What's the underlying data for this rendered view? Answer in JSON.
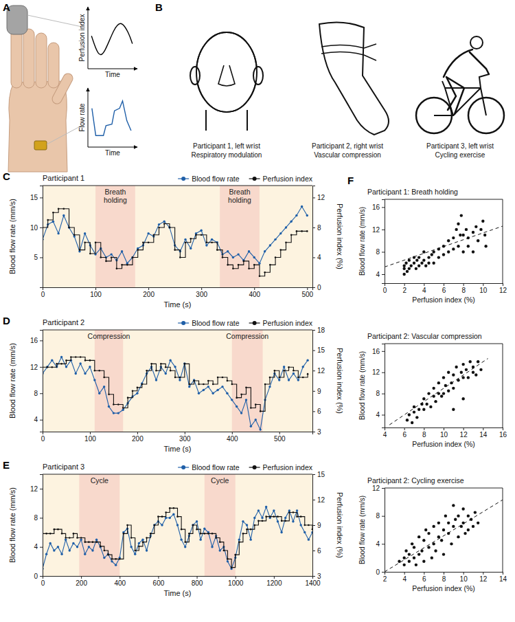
{
  "panel_a": {
    "label": "A",
    "plots": [
      {
        "ylabel": "Perfusion index",
        "xlabel": "Time"
      },
      {
        "ylabel": "Flow rate",
        "xlabel": "Time"
      }
    ]
  },
  "panel_b": {
    "label": "B",
    "items": [
      {
        "lines": [
          "Participant 1, left wrist",
          "Respiratory modulation"
        ]
      },
      {
        "lines": [
          "Participant 2, right wrist",
          "Vascular compression"
        ]
      },
      {
        "lines": [
          "Participant 3, left wrist",
          "Cycling exercise"
        ]
      }
    ]
  },
  "chart_data": [
    {
      "type": "line",
      "panel_label": "C",
      "title": "Participant 1",
      "legend": "top",
      "xlabel": "Time (s)",
      "ylabel": "Blood flow rate (mm/s)",
      "y2label": "Perfusion index (%)",
      "xlim": [
        0,
        510
      ],
      "xticks": [
        0,
        100,
        200,
        300,
        400,
        500
      ],
      "ylim": [
        0,
        17
      ],
      "yticks": [
        5,
        10,
        15
      ],
      "y2lim": [
        0,
        13.6
      ],
      "y2ticks": [
        0,
        4,
        8,
        12
      ],
      "annotations": [
        {
          "text": "Breath holding",
          "range": [
            100,
            175
          ]
        },
        {
          "text": "Breath holding",
          "range": [
            335,
            410
          ]
        }
      ],
      "x": [
        0,
        10,
        20,
        30,
        40,
        50,
        60,
        70,
        80,
        90,
        100,
        110,
        120,
        130,
        140,
        150,
        160,
        170,
        180,
        190,
        200,
        210,
        220,
        230,
        240,
        250,
        260,
        270,
        280,
        290,
        300,
        310,
        320,
        330,
        340,
        350,
        360,
        370,
        380,
        390,
        400,
        410,
        420,
        430,
        440,
        450,
        460,
        470,
        480,
        490,
        500
      ],
      "series": [
        {
          "name": "Blood flow rate",
          "color": "#1f5fa8",
          "marker": "circle",
          "line_style": "solid",
          "values": [
            8,
            10.5,
            11,
            9,
            12,
            10,
            8.5,
            6,
            9,
            7,
            5.5,
            6.5,
            5,
            5.5,
            4.5,
            6,
            4,
            5,
            6.5,
            7,
            9,
            8.5,
            10.5,
            11,
            10,
            7,
            6,
            8,
            6.5,
            9,
            9.5,
            7,
            8,
            7.5,
            5.5,
            6,
            5,
            5.5,
            4.5,
            6,
            5,
            4,
            6,
            7,
            8,
            9,
            10,
            11,
            12,
            13.5,
            12
          ]
        },
        {
          "name": "Perfusion index",
          "color": "#111111",
          "marker": "circle",
          "line_style": "step",
          "axis": "y2",
          "values": [
            8,
            9,
            10,
            10.5,
            10.5,
            8,
            7,
            5,
            6,
            4.5,
            6,
            4,
            3.5,
            4,
            2.5,
            3,
            3,
            4,
            5,
            6,
            6,
            7,
            8,
            8.5,
            8,
            5,
            4,
            6,
            6.5,
            7,
            7,
            6,
            6,
            5,
            4,
            3,
            2.5,
            3,
            3.5,
            2.5,
            3,
            1.5,
            2,
            3,
            4,
            5,
            6,
            7,
            7.5,
            7.5,
            7.5
          ]
        }
      ]
    },
    {
      "type": "line",
      "panel_label": "D",
      "title": "Participant 2",
      "legend": "top",
      "xlabel": "Time (s)",
      "ylabel": "Blood flow rate (mm/s)",
      "y2label": "Perfusion index (%)",
      "xlim": [
        0,
        570
      ],
      "xticks": [
        0,
        100,
        200,
        300,
        400,
        500
      ],
      "ylim": [
        2.2,
        17.6
      ],
      "yticks": [
        4,
        8,
        12,
        16
      ],
      "y2lim": [
        3,
        18
      ],
      "y2ticks": [
        3,
        6,
        9,
        12,
        15,
        18
      ],
      "annotations": [
        {
          "text": "Compression",
          "range": [
            110,
            170
          ]
        },
        {
          "text": "Compression",
          "range": [
            400,
            465
          ]
        }
      ],
      "x": [
        0,
        10,
        20,
        30,
        40,
        50,
        60,
        70,
        80,
        90,
        100,
        110,
        120,
        130,
        140,
        150,
        160,
        170,
        180,
        190,
        200,
        210,
        220,
        230,
        240,
        250,
        260,
        270,
        280,
        290,
        300,
        310,
        320,
        330,
        340,
        350,
        360,
        370,
        380,
        390,
        400,
        410,
        420,
        430,
        440,
        450,
        460,
        470,
        480,
        490,
        500,
        510,
        520,
        530,
        540,
        550,
        560
      ],
      "series": [
        {
          "name": "Blood flow rate",
          "color": "#1f5fa8",
          "marker": "circle",
          "line_style": "solid",
          "values": [
            11,
            12,
            13,
            12,
            13.5,
            12,
            13,
            11,
            12.5,
            11,
            12,
            10,
            8,
            9,
            6,
            5,
            5,
            5.5,
            6.5,
            7.5,
            8,
            9.5,
            11,
            12,
            10,
            12,
            11,
            13,
            12,
            10,
            12.5,
            9,
            10,
            8,
            8.5,
            9,
            8,
            8.5,
            9,
            8,
            7,
            6,
            5,
            7,
            3,
            4,
            2.5,
            7,
            9,
            11,
            10,
            12,
            10,
            11,
            10,
            12,
            13
          ]
        },
        {
          "name": "Perfusion index",
          "color": "#111111",
          "marker": "circle",
          "line_style": "step",
          "axis": "y2",
          "values": [
            12.5,
            12.5,
            12.5,
            13,
            13,
            13.5,
            14,
            14,
            14,
            13.5,
            13.5,
            12,
            12,
            11,
            8.5,
            7,
            7,
            6.5,
            8,
            9,
            9.5,
            10,
            12,
            13,
            12,
            13,
            12.5,
            12,
            11,
            11,
            13,
            10,
            10.5,
            10,
            10,
            10.5,
            10,
            11,
            11,
            10.5,
            10,
            8,
            8.5,
            9.5,
            6.5,
            7,
            6,
            10,
            11,
            12,
            11,
            12,
            12.5,
            12,
            11,
            11,
            11.5
          ]
        }
      ]
    },
    {
      "type": "line",
      "panel_label": "E",
      "title": "Participant 3",
      "legend": "top",
      "xlabel": "Time (s)",
      "ylabel": "Blood flow rate (mm/s)",
      "y2label": "Perfusion index (%)",
      "xlim": [
        0,
        1400
      ],
      "xticks": [
        0,
        200,
        400,
        600,
        800,
        1000,
        1200,
        1400
      ],
      "ylim": [
        0,
        14
      ],
      "yticks": [
        0,
        4,
        8,
        12
      ],
      "y2lim": [
        3,
        15
      ],
      "y2ticks": [
        3,
        6,
        9,
        12,
        15
      ],
      "annotations": [
        {
          "text": "Cycle",
          "range": [
            190,
            400
          ]
        },
        {
          "text": "Cycle",
          "range": [
            840,
            1000
          ]
        }
      ],
      "x": [
        0,
        20,
        40,
        60,
        80,
        100,
        120,
        140,
        160,
        180,
        200,
        220,
        240,
        260,
        280,
        300,
        320,
        340,
        360,
        380,
        400,
        420,
        440,
        460,
        480,
        500,
        520,
        540,
        560,
        580,
        600,
        620,
        640,
        660,
        680,
        700,
        720,
        740,
        760,
        780,
        800,
        820,
        840,
        860,
        880,
        900,
        920,
        940,
        960,
        980,
        1000,
        1020,
        1040,
        1060,
        1080,
        1100,
        1120,
        1140,
        1160,
        1180,
        1200,
        1220,
        1240,
        1260,
        1280,
        1300,
        1320,
        1340,
        1360,
        1380,
        1400
      ],
      "series": [
        {
          "name": "Blood flow rate",
          "color": "#1f5fa8",
          "marker": "circle",
          "line_style": "solid",
          "values": [
            1,
            3,
            4.5,
            3.5,
            4,
            3,
            5,
            3.5,
            4.5,
            4,
            5,
            3,
            4,
            3.5,
            5,
            4,
            2.5,
            3,
            2,
            1.5,
            2.5,
            6,
            6.5,
            4,
            3,
            4.5,
            5,
            3.5,
            5.5,
            7,
            7.5,
            7,
            8,
            8,
            8.5,
            7,
            5,
            4,
            5.5,
            7,
            7.5,
            5,
            6.5,
            6,
            4,
            5.5,
            3.5,
            4,
            2,
            1,
            2.5,
            5,
            7.5,
            7,
            5,
            8,
            9,
            8,
            9.5,
            8,
            9,
            7.5,
            6,
            8,
            9,
            7.5,
            9,
            7,
            6,
            5,
            6
          ]
        },
        {
          "name": "Perfusion index",
          "color": "#111111",
          "marker": "circle",
          "line_style": "step",
          "axis": "y2",
          "values": [
            8,
            8,
            8,
            8.5,
            8.5,
            8,
            7.5,
            7.5,
            8,
            7.5,
            7.5,
            7,
            7,
            7,
            7,
            6.5,
            6,
            5.5,
            5,
            5,
            5,
            8,
            9,
            7.5,
            6,
            6.5,
            7,
            7.5,
            8,
            9,
            10,
            10,
            10.5,
            11,
            11,
            10,
            8.5,
            7,
            8,
            9,
            8.5,
            8,
            8,
            8,
            8,
            7.5,
            7,
            6,
            5,
            4,
            5.5,
            7,
            8,
            8.5,
            8.5,
            9,
            9.5,
            9.5,
            10,
            10,
            10,
            10,
            9.5,
            9.5,
            10.5,
            10.5,
            10,
            10,
            9,
            9,
            8.5
          ]
        }
      ]
    },
    {
      "type": "scatter",
      "panel_label": "F",
      "title": "Participant 1: Breath holding",
      "xlabel": "Perfusion index (%)",
      "ylabel": "Blood flow rate (mm/s)",
      "xlim": [
        0,
        12
      ],
      "xticks": [
        0,
        2,
        4,
        6,
        8,
        10,
        12
      ],
      "ylim": [
        2.4,
        17.4
      ],
      "yticks": [
        4,
        8,
        12,
        16
      ],
      "series": [
        {
          "type": "scatter",
          "color": "#111111",
          "marker": "circle",
          "x": [
            2,
            2,
            2,
            2.2,
            2.3,
            2.5,
            2.5,
            2.7,
            3,
            3,
            3.2,
            3.3,
            3.5,
            3.5,
            3.8,
            4,
            4,
            4.2,
            4.5,
            4.5,
            4.8,
            5,
            5,
            5.5,
            5.5,
            6,
            6,
            6.5,
            6.5,
            7,
            7,
            7.3,
            7.5,
            7.5,
            7.7,
            7.8,
            8,
            8,
            8.3,
            8.5,
            8.5,
            9,
            9,
            9.3,
            9.5,
            9.8,
            10,
            10.2,
            10.3
          ],
          "values": [
            4,
            5,
            5.5,
            6,
            4.5,
            5,
            6.5,
            5.5,
            6,
            7,
            5,
            6.5,
            5.5,
            7,
            6,
            6.5,
            8,
            5.5,
            7,
            6,
            7.5,
            6,
            8,
            7,
            8.5,
            7.5,
            9,
            8,
            10,
            8.5,
            10.5,
            12,
            9,
            13,
            11,
            14.5,
            11,
            8,
            12,
            9,
            10.5,
            11.5,
            8,
            12.5,
            10,
            12,
            13.5,
            11,
            9
          ]
        },
        {
          "type": "line",
          "color": "#111111",
          "line_style": "dashed",
          "x": [
            0,
            12
          ],
          "values": [
            5.3,
            12.6
          ]
        }
      ]
    },
    {
      "type": "scatter",
      "title": "Participant 2: Vascular compression",
      "xlabel": "Perfusion index (%)",
      "ylabel": "Blood flow rate (mm/s)",
      "xlim": [
        4,
        16
      ],
      "xticks": [
        4,
        6,
        8,
        10,
        12,
        14,
        16
      ],
      "ylim": [
        1.6,
        17.4
      ],
      "yticks": [
        4,
        8,
        12,
        16
      ],
      "series": [
        {
          "type": "scatter",
          "color": "#111111",
          "marker": "circle",
          "x": [
            6.3,
            6.5,
            6.8,
            7,
            7,
            7.3,
            7.5,
            7.8,
            8,
            8,
            8.3,
            8.5,
            8.7,
            9,
            9,
            9.2,
            9.5,
            9.5,
            9.8,
            10,
            10,
            10.2,
            10.5,
            10.5,
            10.8,
            11,
            11,
            11.3,
            11.5,
            11.8,
            12,
            12,
            12.3,
            12.5,
            12.7,
            13,
            13,
            13.3,
            13.5,
            13.8,
            12,
            11
          ],
          "values": [
            3,
            4,
            2.5,
            4.5,
            5.5,
            3.5,
            5,
            6,
            5,
            7,
            6,
            8,
            5.5,
            7.5,
            9,
            6.5,
            8,
            10,
            7.5,
            8,
            11,
            9.5,
            12,
            8.5,
            10,
            11.5,
            9,
            13,
            10.5,
            12,
            11,
            13.5,
            12.5,
            11,
            14,
            12,
            13,
            11.5,
            14,
            12.5,
            7,
            5
          ]
        },
        {
          "type": "line",
          "color": "#111111",
          "line_style": "dashed",
          "x": [
            4.5,
            14.5
          ],
          "values": [
            2.1,
            14.6
          ]
        }
      ]
    },
    {
      "type": "scatter",
      "title": "Participant 2: Cycling exercise",
      "xlabel": "Perfusion index (%)",
      "ylabel": "Blood flow rate (mm/s)",
      "xlim": [
        2,
        14
      ],
      "xticks": [
        2,
        4,
        6,
        8,
        10,
        12,
        14
      ],
      "ylim": [
        0,
        12
      ],
      "yticks": [
        0,
        4,
        8,
        12
      ],
      "series": [
        {
          "type": "scatter",
          "color": "#111111",
          "marker": "circle",
          "x": [
            3.5,
            4,
            4,
            4.2,
            4.5,
            4.5,
            4.8,
            5,
            5,
            5.2,
            5.5,
            5.5,
            5.8,
            6,
            6,
            6.2,
            6.5,
            6.5,
            6.8,
            7,
            7,
            7.2,
            7.5,
            7.5,
            7.8,
            8,
            8,
            8.2,
            8.5,
            8.5,
            8.8,
            9,
            9,
            9.2,
            9.5,
            9.5,
            9.8,
            10,
            10,
            10.2,
            10.5,
            10.5,
            10.8,
            11,
            11.2,
            11.5
          ],
          "values": [
            1.5,
            2,
            1,
            3,
            1.5,
            2.5,
            4,
            2,
            3.5,
            1,
            5,
            2.5,
            3,
            4.5,
            1.5,
            6,
            3.5,
            5.5,
            2,
            4,
            6.5,
            3,
            5,
            7,
            4.5,
            6,
            2.5,
            8,
            5.5,
            7,
            4,
            6.5,
            9.5,
            7.5,
            5,
            8,
            6.5,
            7,
            9,
            5.5,
            8,
            6,
            7.5,
            6.5,
            8.5,
            7
          ]
        },
        {
          "type": "line",
          "color": "#111111",
          "line_style": "dashed",
          "x": [
            2,
            14
          ],
          "values": [
            0,
            10.3
          ]
        }
      ]
    }
  ]
}
